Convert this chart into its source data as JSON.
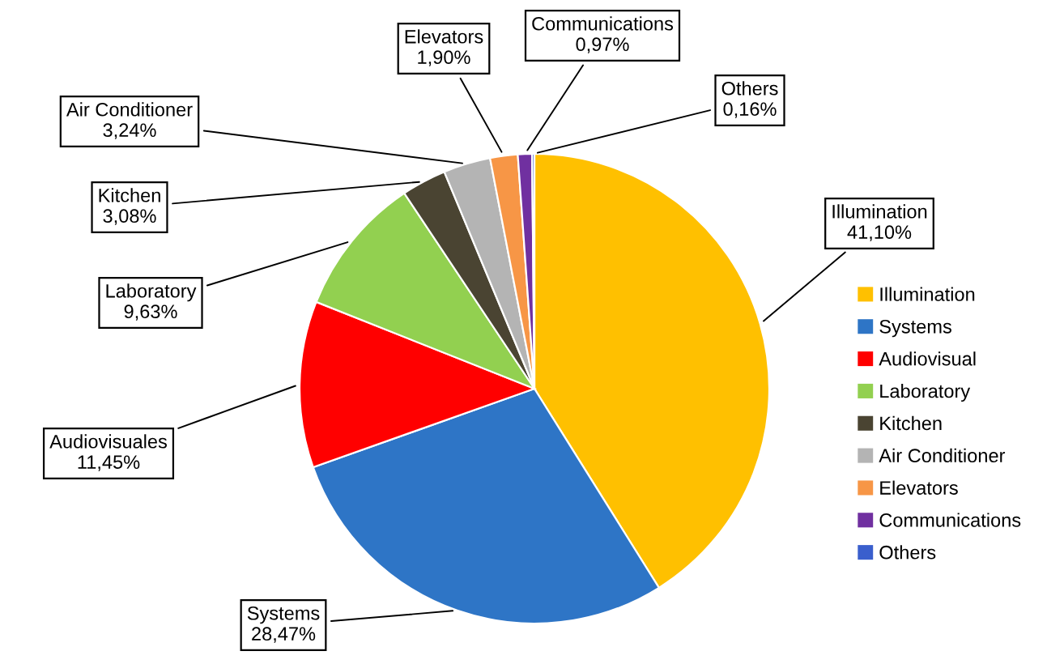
{
  "chart_data": {
    "type": "pie",
    "categories": [
      "Illumination",
      "Systems",
      "Audiovisual",
      "Laboratory",
      "Kitchen",
      "Air Conditioner",
      "Elevators",
      "Communications",
      "Others"
    ],
    "values": [
      41.1,
      28.47,
      11.45,
      9.63,
      3.08,
      3.24,
      1.9,
      0.97,
      0.16
    ],
    "colors": [
      "#ffc000",
      "#2e75c6",
      "#ff0000",
      "#92d050",
      "#4a4432",
      "#b4b4b4",
      "#f79646",
      "#7030a0",
      "#3a5fcd"
    ],
    "value_labels": [
      "Illumination\n41,10%",
      "Systems\n28,47%",
      "Audiovisuales\n11,45%",
      "Laboratory\n9,63%",
      "Kitchen\n3,08%",
      "Air Conditioner\n3,24%",
      "Elevators\n1,90%",
      "Communications\n0,97%",
      "Others\n0,16%"
    ],
    "legend": "right"
  }
}
